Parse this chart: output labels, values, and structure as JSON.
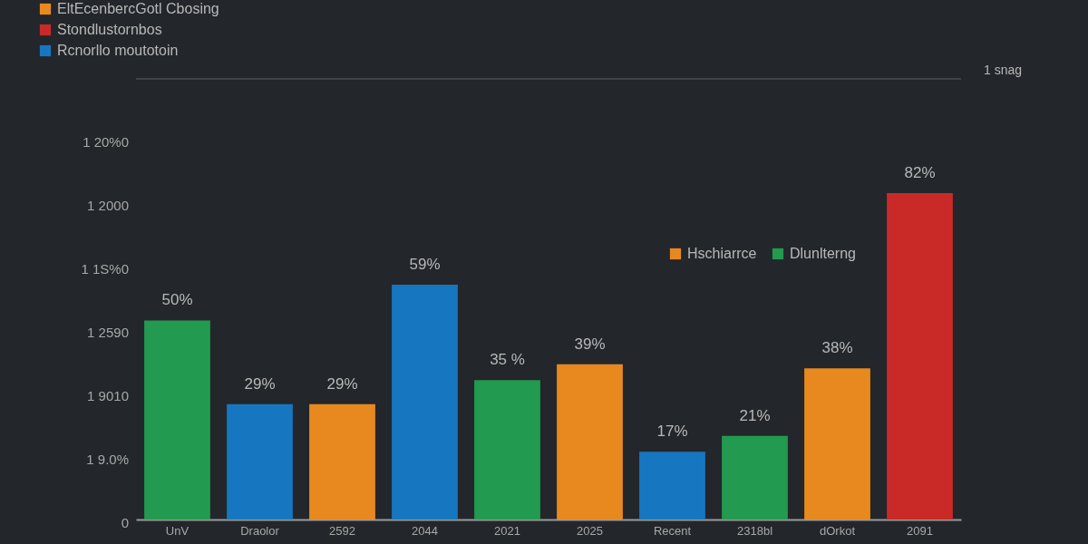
{
  "chart_data": {
    "type": "bar",
    "categories": [
      "UnV",
      "Draolor",
      "2592",
      "2044",
      "2021",
      "2025",
      "Recent",
      "2318bl",
      "dOrkot",
      "2091"
    ],
    "series": [
      {
        "name": "EltEcenbercGotl Cbosing",
        "color": "#e8891f",
        "values": [
          null,
          null,
          29,
          null,
          null,
          39,
          null,
          null,
          38,
          null
        ],
        "value_labels": [
          null,
          null,
          "29%",
          null,
          null,
          "39%",
          null,
          null,
          "38%",
          null
        ]
      },
      {
        "name": "Stondlustornbos",
        "color": "#c92a28",
        "values": [
          null,
          null,
          null,
          null,
          null,
          null,
          null,
          null,
          null,
          82
        ],
        "value_labels": [
          null,
          null,
          null,
          null,
          null,
          null,
          null,
          null,
          null,
          "82%"
        ]
      },
      {
        "name": "Rcnorllo moutotoin",
        "color": "#1677c0",
        "values": [
          null,
          29,
          null,
          59,
          null,
          null,
          17,
          null,
          null,
          null
        ],
        "value_labels": [
          null,
          "29%",
          null,
          "59%",
          null,
          null,
          "17%",
          null,
          null,
          null
        ]
      },
      {
        "name": "Hschiarrce",
        "color": "#e8891f",
        "values": [
          null,
          null,
          null,
          null,
          null,
          null,
          null,
          null,
          null,
          null
        ]
      },
      {
        "name": "Dlunlterng",
        "color": "#229a4f",
        "values": [
          50,
          null,
          null,
          null,
          35,
          null,
          null,
          21,
          null,
          null
        ],
        "value_labels": [
          "50%",
          null,
          null,
          null,
          "35 %",
          null,
          null,
          "21%",
          null,
          null
        ]
      }
    ],
    "legend": "top left",
    "annotations": [
      "1 snag",
      "1 20%0",
      "1 2000",
      "1 1S%0",
      "1 2590",
      "1 9010",
      "1 9.0%",
      "0"
    ]
  }
}
